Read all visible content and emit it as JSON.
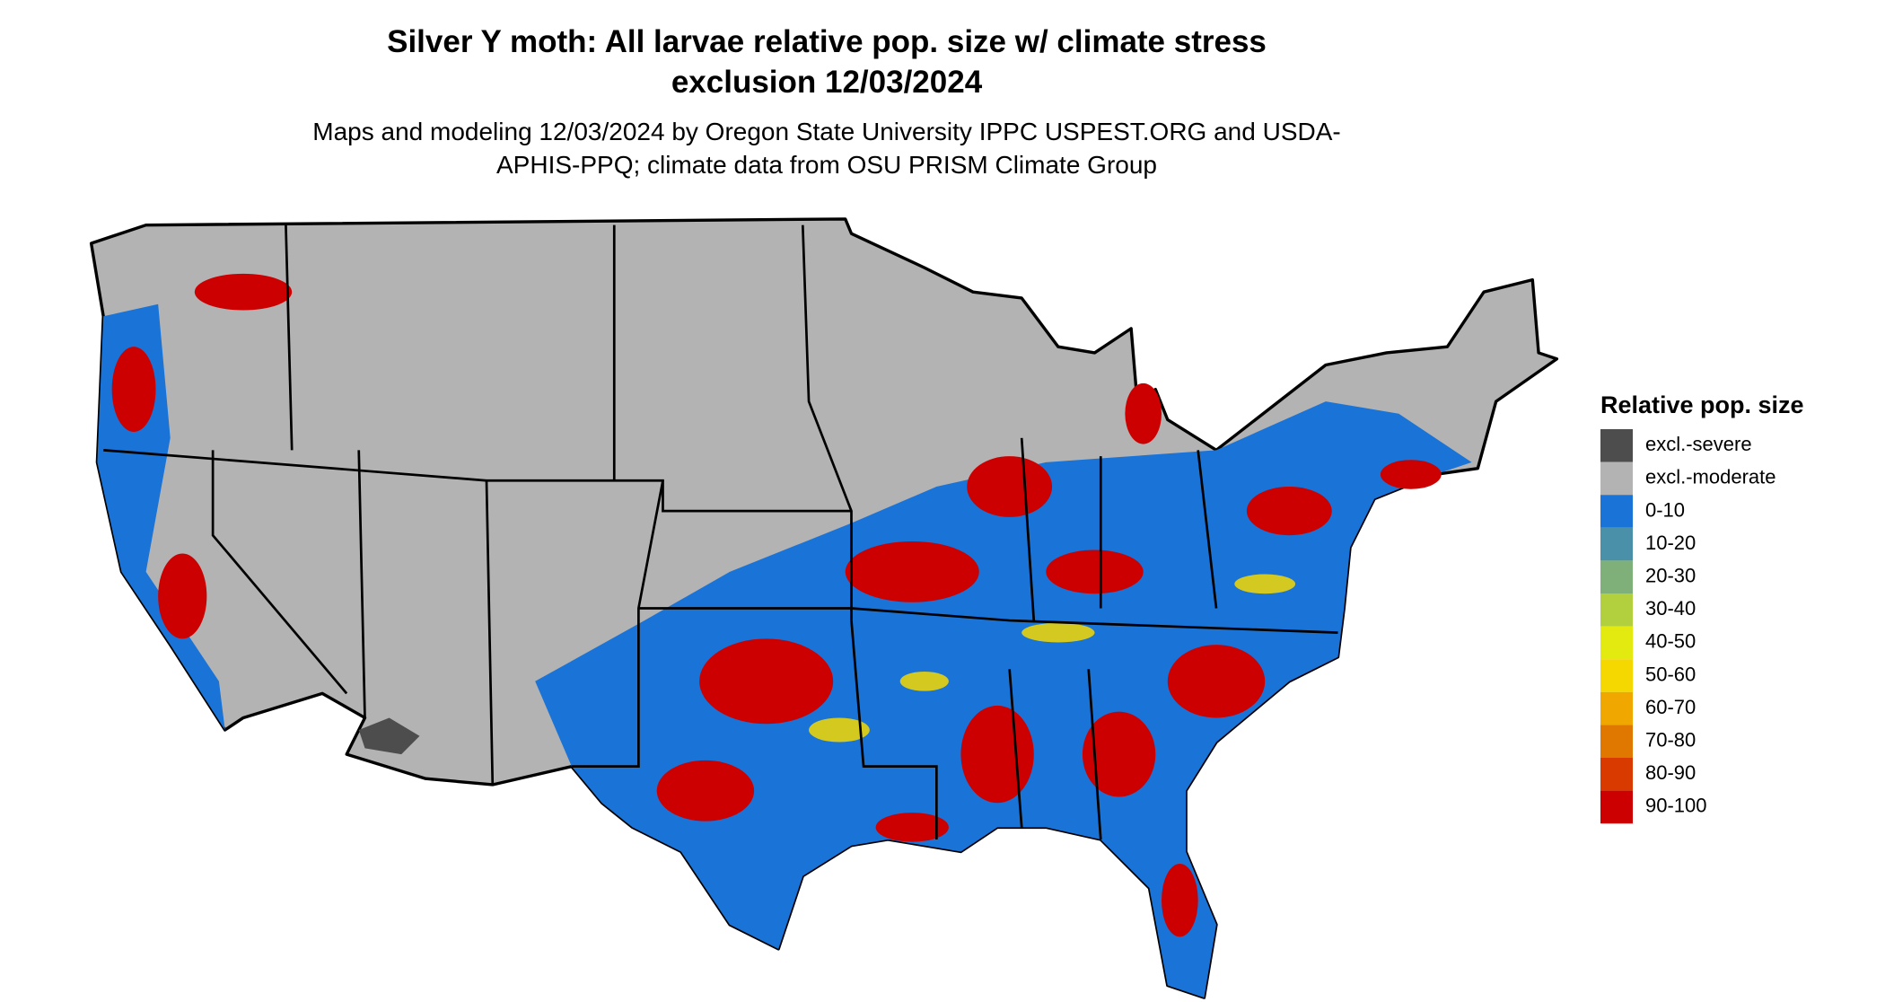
{
  "title": "Silver Y moth: All larvae relative pop. size w/ climate stress exclusion 12/03/2024",
  "subtitle": "Maps and modeling 12/03/2024 by Oregon State University IPPC USPEST.ORG and USDA-APHIS-PPQ; climate data from OSU PRISM Climate Group",
  "legend": {
    "title": "Relative pop. size",
    "items": [
      {
        "label": "excl.-severe",
        "color": "#4d4d4d"
      },
      {
        "label": "excl.-moderate",
        "color": "#b3b3b3"
      },
      {
        "label": "0-10",
        "color": "#1a73d6"
      },
      {
        "label": "10-20",
        "color": "#4a90a8"
      },
      {
        "label": "20-30",
        "color": "#7fb07a"
      },
      {
        "label": "30-40",
        "color": "#b2cf3e"
      },
      {
        "label": "40-50",
        "color": "#e3ea10"
      },
      {
        "label": "50-60",
        "color": "#f5d800"
      },
      {
        "label": "60-70",
        "color": "#f0a800"
      },
      {
        "label": "70-80",
        "color": "#e07800"
      },
      {
        "label": "80-90",
        "color": "#d83a00"
      },
      {
        "label": "90-100",
        "color": "#cc0000"
      }
    ]
  }
}
